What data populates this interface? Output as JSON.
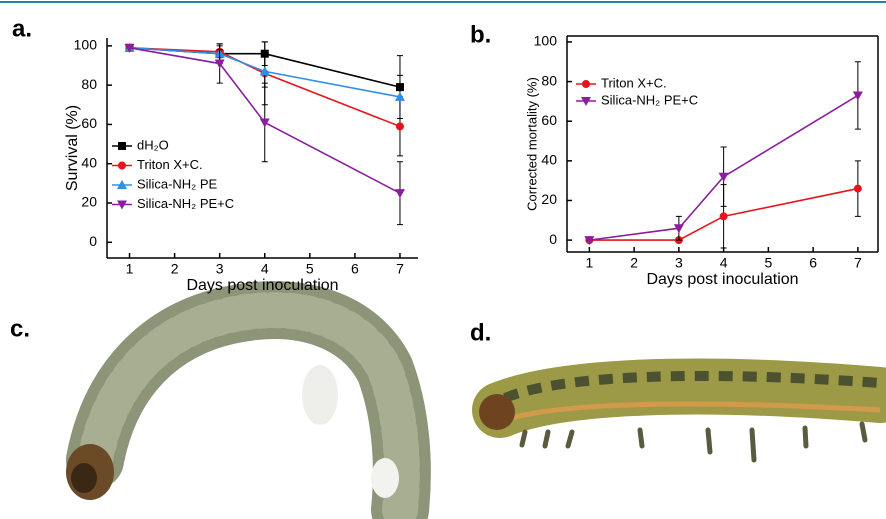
{
  "panel_labels": [
    "a.",
    "b.",
    "c.",
    "d."
  ],
  "chart_data": [
    {
      "type": "line",
      "xlabel": "Days post inoculation",
      "ylabel": "Survival (%)",
      "x": [
        1,
        3,
        4,
        7
      ],
      "xlim": [
        0.5,
        7.4
      ],
      "xticks": [
        1,
        2,
        3,
        4,
        5,
        6,
        7
      ],
      "ylim": [
        -8,
        104
      ],
      "yticks": [
        0,
        20,
        40,
        60,
        80,
        100
      ],
      "box": false,
      "legend": "center left",
      "series": [
        {
          "name": "dH₂O",
          "color": "#000000",
          "marker": "square",
          "values": [
            99,
            96,
            96,
            79
          ],
          "errors": [
            0,
            5,
            6,
            16
          ]
        },
        {
          "name": "Triton X+C.",
          "color": "#e8141b",
          "marker": "circle",
          "values": [
            99,
            97,
            86,
            59
          ],
          "errors": [
            0,
            3,
            16,
            15
          ]
        },
        {
          "name": "Silica-NH₂ PE",
          "color": "#2f8fe8",
          "marker": "triangle-up",
          "values": [
            99,
            96,
            87,
            74
          ],
          "errors": [
            0,
            2,
            8,
            11
          ]
        },
        {
          "name": "Silica-NH₂ PE+C",
          "color": "#8b1e9e",
          "marker": "triangle-down",
          "values": [
            99,
            91,
            61,
            25
          ],
          "errors": [
            0,
            10,
            20,
            16
          ]
        }
      ]
    },
    {
      "type": "line",
      "xlabel": "Days post inoculation",
      "ylabel": "Corrected mortality (%)",
      "x": [
        1,
        3,
        4,
        7
      ],
      "xlim": [
        0.5,
        7.45
      ],
      "xticks": [
        1,
        2,
        3,
        4,
        5,
        6,
        7
      ],
      "ylim": [
        -6,
        103
      ],
      "yticks": [
        0,
        20,
        40,
        60,
        80,
        100
      ],
      "box": true,
      "legend": "upper left",
      "series": [
        {
          "name": "Triton X+C.",
          "color": "#e8141b",
          "marker": "circle",
          "values": [
            0,
            0,
            12,
            26
          ],
          "errors": [
            0,
            0,
            16,
            14
          ]
        },
        {
          "name": "Silica-NH₂ PE+C",
          "color": "#8b1e9e",
          "marker": "triangle-down",
          "values": [
            0,
            6,
            32,
            73
          ],
          "errors": [
            0,
            6,
            15,
            17
          ]
        }
      ]
    }
  ]
}
